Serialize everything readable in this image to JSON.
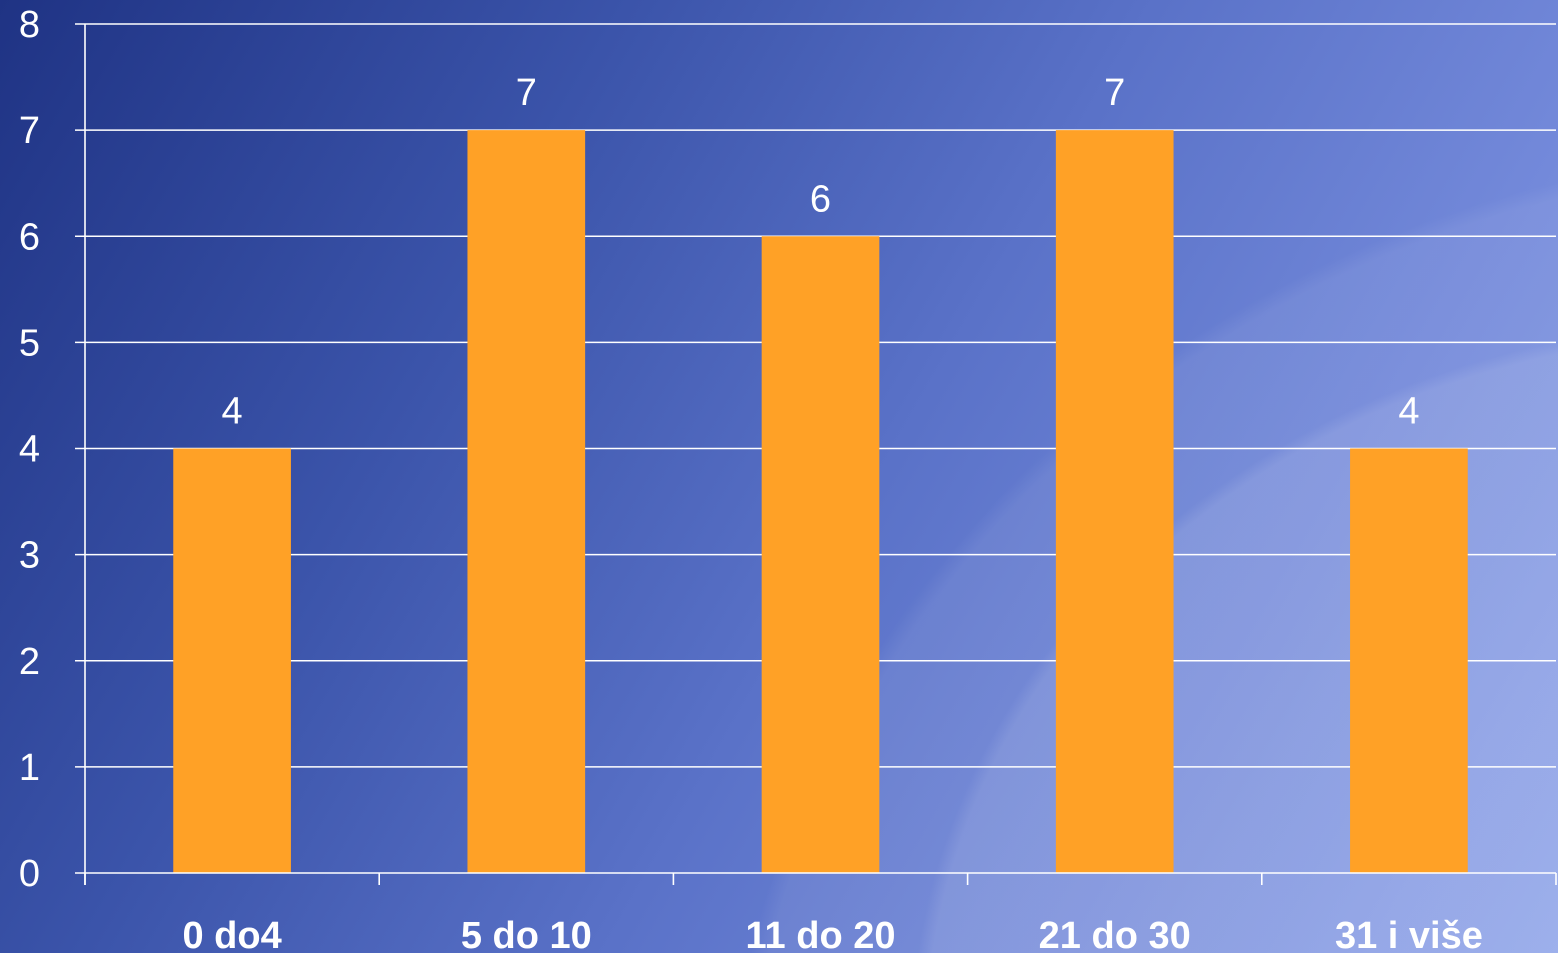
{
  "chart_data": {
    "type": "bar",
    "categories": [
      "0 do4",
      "5 do 10",
      "11 do 20",
      "21 do 30",
      "31 i više"
    ],
    "values": [
      4,
      7,
      6,
      7,
      4
    ],
    "ylim": [
      0,
      8
    ],
    "yticks": [
      0,
      1,
      2,
      3,
      4,
      5,
      6,
      7,
      8
    ],
    "data_labels": [
      "4",
      "7",
      "6",
      "7",
      "4"
    ],
    "grid": true,
    "legend": "none",
    "colors": {
      "bar": "#ffa126",
      "grid": "#ffffff",
      "axis": "#ffffff",
      "text": "#ffffff"
    }
  }
}
